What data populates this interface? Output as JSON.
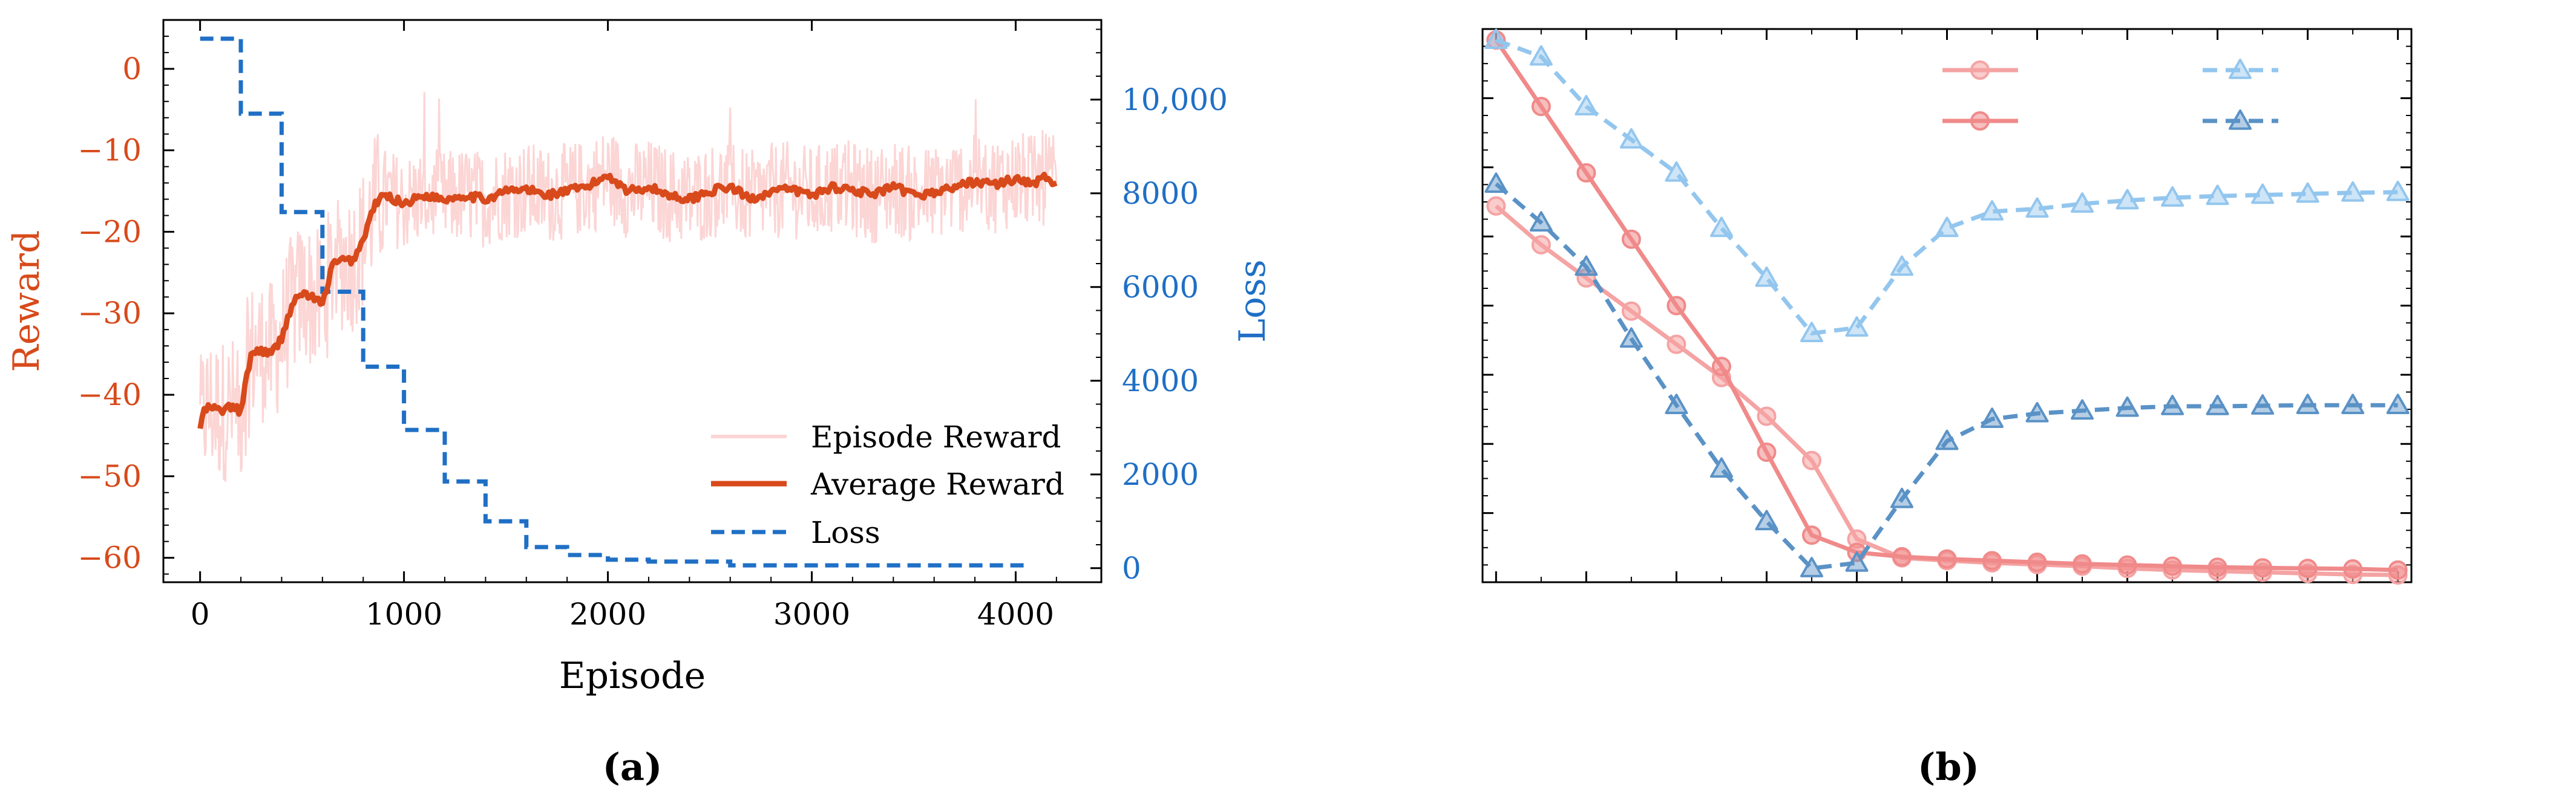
{
  "chart_data": [
    {
      "panel_label": "(a)",
      "type": "line",
      "xlabel": "Episode",
      "ylabel_left": "Reward",
      "ylabel_right": "Loss",
      "xlim": [
        -180,
        4420
      ],
      "ylim_left": [
        -63,
        6
      ],
      "ylim_right": [
        -300,
        11700
      ],
      "xticks": [
        0,
        1000,
        2000,
        3000,
        4000
      ],
      "xtick_labels": [
        "0",
        "1000",
        "2000",
        "3000",
        "4000"
      ],
      "yticks_left": [
        0,
        -10,
        -20,
        -30,
        -40,
        -50,
        -60
      ],
      "ytick_labels_left": [
        "0",
        "−10",
        "−20",
        "−30",
        "−40",
        "−50",
        "−60"
      ],
      "yticks_right": [
        0,
        2000,
        4000,
        6000,
        8000,
        10000
      ],
      "ytick_labels_right": [
        "0",
        "2000",
        "4000",
        "6000",
        "8000",
        "10,000"
      ],
      "colors": {
        "reward": "#d84a1b",
        "episode_reward": "#fcd5d5",
        "loss": "#1f6fc5"
      },
      "legend": {
        "position": "lower right",
        "entries": [
          "Episode Reward",
          "Average Reward",
          "Loss"
        ]
      },
      "average_reward": {
        "x": [
          0,
          20,
          50,
          100,
          150,
          200,
          250,
          300,
          350,
          400,
          450,
          500,
          550,
          600,
          650,
          700,
          750,
          800,
          850,
          900,
          950,
          1000,
          1100,
          1200,
          1300,
          1400,
          1500,
          1600,
          1700,
          1800,
          1900,
          2000,
          2100,
          2200,
          2300,
          2400,
          2500,
          2600,
          2700,
          2800,
          2900,
          3000,
          3100,
          3200,
          3300,
          3400,
          3500,
          3600,
          3700,
          3800,
          3900,
          4000,
          4100,
          4150,
          4200
        ],
        "y": [
          -44,
          -42,
          -41.5,
          -42,
          -41.5,
          -42,
          -35,
          -34.5,
          -35,
          -33,
          -29,
          -27.5,
          -28,
          -29,
          -24,
          -23.5,
          -23.5,
          -21,
          -17,
          -15.5,
          -16,
          -16.5,
          -15.5,
          -16,
          -15.5,
          -16,
          -15,
          -14.8,
          -15.5,
          -15,
          -14.5,
          -13,
          -15,
          -14.5,
          -15.5,
          -16,
          -15,
          -14.5,
          -16,
          -15,
          -14.8,
          -15.5,
          -14.5,
          -14.8,
          -15.5,
          -14.5,
          -15.5,
          -15.2,
          -14.5,
          -13.8,
          -14.2,
          -13.5,
          -14,
          -13.2,
          -14.5
        ]
      },
      "episode_reward_note": "noisy per-episode reward around the average (band drawn behind)",
      "loss": {
        "steps_x": [
          0,
          200,
          200,
          400,
          400,
          600,
          600,
          800,
          800,
          1000,
          1000,
          1200,
          1200,
          1400,
          1400,
          1600,
          1600,
          1800,
          1800,
          2000,
          2000,
          2200,
          2200,
          2600,
          2600,
          4050
        ],
        "steps_y": [
          11300,
          11300,
          9700,
          9700,
          7600,
          7600,
          5900,
          5900,
          4300,
          4300,
          2950,
          2950,
          1850,
          1850,
          1000,
          1000,
          450,
          450,
          280,
          280,
          180,
          180,
          140,
          140,
          60,
          60
        ]
      }
    },
    {
      "panel_label": "(b)",
      "type": "line",
      "xlim": [
        -0.3,
        20.3
      ],
      "ylim": [
        0,
        100
      ],
      "x": [
        0,
        1,
        2,
        3,
        4,
        5,
        6,
        7,
        8,
        9,
        10,
        11,
        12,
        13,
        14,
        15,
        16,
        17,
        18,
        19,
        20
      ],
      "legend": {
        "position": "top-right",
        "entries": [
          "",
          "",
          "",
          ""
        ]
      },
      "series": [
        {
          "name": "",
          "color": "#f5a3a3",
          "marker": "circle",
          "dash": "solid",
          "values": [
            68,
            61,
            55,
            49,
            43,
            37,
            30,
            22,
            7.8,
            4.4,
            3.9,
            3.5,
            3.2,
            2.9,
            2.5,
            2.2,
            2.0,
            1.8,
            1.6,
            1.4,
            1.3
          ]
        },
        {
          "name": "",
          "color": "#f08a8a",
          "marker": "circle",
          "dash": "solid",
          "values": [
            98,
            86,
            74,
            62,
            50,
            39,
            23.5,
            8.5,
            5.4,
            4.6,
            4.2,
            3.9,
            3.6,
            3.3,
            3.1,
            2.9,
            2.7,
            2.6,
            2.5,
            2.4,
            2.2
          ]
        },
        {
          "name": "",
          "color": "#93c6ee",
          "marker": "triangle",
          "dash": "dashed",
          "values": [
            98,
            95,
            86,
            80,
            74,
            64,
            55,
            45,
            46,
            57,
            64,
            67,
            67.5,
            68.4,
            69,
            69.5,
            69.8,
            70,
            70.2,
            70.4,
            70.5
          ]
        },
        {
          "name": "",
          "color": "#5a92c6",
          "marker": "triangle",
          "dash": "dashed",
          "values": [
            72,
            65,
            57,
            44,
            32,
            20.5,
            11,
            2.5,
            3.5,
            15,
            25.5,
            29.5,
            30.5,
            31,
            31.5,
            31.8,
            31.8,
            31.9,
            32,
            32,
            32
          ]
        }
      ]
    }
  ]
}
